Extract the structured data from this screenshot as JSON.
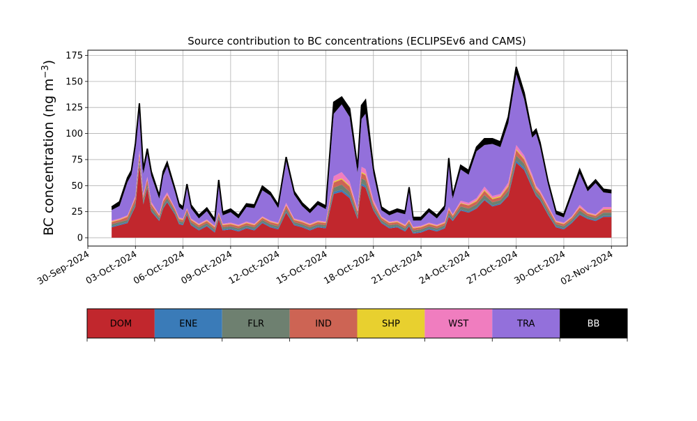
{
  "chart_data": {
    "type": "area",
    "title": "Source contribution to BC concentrations (ECLIPSEv6 and CAMS)",
    "xlabel": "",
    "ylabel": "BC concentration (ng m",
    "ylabel_superscript": "−3",
    "ylabel_close": ")",
    "ylim": [
      -8,
      180
    ],
    "x_axis": "date",
    "xlim": [
      "2024-09-30",
      "2024-11-03"
    ],
    "grid": true,
    "stacking": "stacked",
    "yticks": [
      {
        "value": 0,
        "label": "0"
      },
      {
        "value": 25,
        "label": "25"
      },
      {
        "value": 50,
        "label": "50"
      },
      {
        "value": 75,
        "label": "75"
      },
      {
        "value": 100,
        "label": "100"
      },
      {
        "value": 125,
        "label": "125"
      },
      {
        "value": 150,
        "label": "150"
      },
      {
        "value": 175,
        "label": "175"
      }
    ],
    "xticks": [
      {
        "date": "2024-09-30",
        "label": "30-Sep-2024"
      },
      {
        "date": "2024-10-03",
        "label": "03-Oct-2024"
      },
      {
        "date": "2024-10-06",
        "label": "06-Oct-2024"
      },
      {
        "date": "2024-10-09",
        "label": "09-Oct-2024"
      },
      {
        "date": "2024-10-12",
        "label": "12-Oct-2024"
      },
      {
        "date": "2024-10-15",
        "label": "15-Oct-2024"
      },
      {
        "date": "2024-10-18",
        "label": "18-Oct-2024"
      },
      {
        "date": "2024-10-21",
        "label": "21-Oct-2024"
      },
      {
        "date": "2024-10-24",
        "label": "24-Oct-2024"
      },
      {
        "date": "2024-10-27",
        "label": "27-Oct-2024"
      },
      {
        "date": "2024-10-30",
        "label": "30-Oct-2024"
      },
      {
        "date": "2024-11-02",
        "label": "02-Nov-2024"
      }
    ],
    "x": [
      "2024-10-01 12:00",
      "2024-10-02 00:00",
      "2024-10-02 12:00",
      "2024-10-02 18:00",
      "2024-10-03 00:00",
      "2024-10-03 06:00",
      "2024-10-03 12:00",
      "2024-10-03 18:00",
      "2024-10-04 00:00",
      "2024-10-04 12:00",
      "2024-10-04 18:00",
      "2024-10-05 00:00",
      "2024-10-05 12:00",
      "2024-10-05 18:00",
      "2024-10-06 00:00",
      "2024-10-06 06:00",
      "2024-10-06 12:00",
      "2024-10-07 00:00",
      "2024-10-07 12:00",
      "2024-10-08 00:00",
      "2024-10-08 06:00",
      "2024-10-08 12:00",
      "2024-10-09 00:00",
      "2024-10-09 12:00",
      "2024-10-10 00:00",
      "2024-10-10 12:00",
      "2024-10-11 00:00",
      "2024-10-11 12:00",
      "2024-10-12 00:00",
      "2024-10-12 12:00",
      "2024-10-13 00:00",
      "2024-10-13 12:00",
      "2024-10-14 00:00",
      "2024-10-14 12:00",
      "2024-10-15 00:00",
      "2024-10-15 12:00",
      "2024-10-16 00:00",
      "2024-10-16 12:00",
      "2024-10-17 00:00",
      "2024-10-17 06:00",
      "2024-10-17 12:00",
      "2024-10-18 00:00",
      "2024-10-18 12:00",
      "2024-10-19 00:00",
      "2024-10-19 12:00",
      "2024-10-20 00:00",
      "2024-10-20 06:00",
      "2024-10-20 12:00",
      "2024-10-21 00:00",
      "2024-10-21 12:00",
      "2024-10-22 00:00",
      "2024-10-22 12:00",
      "2024-10-22 18:00",
      "2024-10-23 00:00",
      "2024-10-23 12:00",
      "2024-10-24 00:00",
      "2024-10-24 12:00",
      "2024-10-25 00:00",
      "2024-10-25 12:00",
      "2024-10-26 00:00",
      "2024-10-26 12:00",
      "2024-10-27 00:00",
      "2024-10-27 12:00",
      "2024-10-28 00:00",
      "2024-10-28 06:00",
      "2024-10-28 12:00",
      "2024-10-29 00:00",
      "2024-10-29 12:00",
      "2024-10-30 00:00",
      "2024-10-30 12:00",
      "2024-10-31 00:00",
      "2024-10-31 12:00",
      "2024-11-01 00:00",
      "2024-11-01 12:00",
      "2024-11-02 00:00"
    ],
    "series": [
      {
        "name": "DOM",
        "color": "#c1272d",
        "values": [
          10,
          12,
          14,
          22,
          30,
          70,
          32,
          48,
          25,
          16,
          28,
          34,
          22,
          13,
          12,
          22,
          12,
          7,
          11,
          5,
          18,
          7,
          8,
          6,
          9,
          7,
          14,
          10,
          8,
          24,
          12,
          10,
          7,
          10,
          9,
          42,
          44,
          38,
          18,
          50,
          48,
          26,
          14,
          9,
          10,
          6,
          11,
          4,
          5,
          8,
          6,
          9,
          20,
          16,
          26,
          24,
          28,
          36,
          30,
          32,
          40,
          72,
          65,
          48,
          40,
          36,
          22,
          10,
          8,
          14,
          22,
          18,
          16,
          20,
          20
        ]
      },
      {
        "name": "ENE",
        "color": "#3a7bb8",
        "values": [
          1,
          1,
          1,
          1,
          1,
          2,
          1,
          1,
          1,
          1,
          1,
          1,
          1,
          1,
          1,
          1,
          1,
          1,
          1,
          1,
          1,
          1,
          1,
          1,
          1,
          1,
          1,
          1,
          1,
          1,
          1,
          1,
          1,
          1,
          1,
          2,
          2,
          2,
          1,
          2,
          2,
          1,
          1,
          1,
          1,
          1,
          1,
          1,
          1,
          1,
          1,
          1,
          1,
          1,
          1,
          1,
          1,
          1,
          1,
          1,
          1,
          2,
          2,
          1,
          1,
          1,
          1,
          1,
          1,
          1,
          1,
          1,
          1,
          1,
          1
        ]
      },
      {
        "name": "FLR",
        "color": "#6e8070",
        "values": [
          2,
          2,
          2,
          3,
          3,
          4,
          3,
          3,
          3,
          2,
          3,
          3,
          2,
          2,
          2,
          2,
          2,
          2,
          2,
          2,
          2,
          2,
          2,
          2,
          2,
          2,
          2,
          2,
          2,
          3,
          2,
          2,
          2,
          2,
          2,
          4,
          5,
          4,
          3,
          5,
          5,
          3,
          2,
          2,
          2,
          2,
          2,
          2,
          2,
          2,
          2,
          2,
          3,
          2,
          3,
          3,
          3,
          4,
          3,
          3,
          4,
          5,
          4,
          4,
          3,
          3,
          3,
          2,
          2,
          2,
          3,
          2,
          2,
          3,
          3
        ]
      },
      {
        "name": "IND",
        "color": "#cd6454",
        "values": [
          2,
          2,
          3,
          3,
          4,
          4,
          3,
          4,
          3,
          2,
          3,
          3,
          2,
          2,
          2,
          2,
          2,
          2,
          2,
          2,
          2,
          2,
          2,
          2,
          2,
          2,
          2,
          2,
          2,
          3,
          2,
          2,
          2,
          2,
          2,
          5,
          5,
          5,
          3,
          5,
          5,
          3,
          2,
          2,
          2,
          2,
          2,
          2,
          2,
          2,
          2,
          2,
          3,
          2,
          3,
          3,
          3,
          4,
          3,
          3,
          4,
          5,
          4,
          4,
          3,
          3,
          3,
          2,
          2,
          2,
          3,
          2,
          2,
          3,
          3
        ]
      },
      {
        "name": "SHP",
        "color": "#e8d02f",
        "values": [
          0.5,
          0.5,
          0.5,
          0.5,
          0.5,
          1,
          0.5,
          0.5,
          0.5,
          0.5,
          0.5,
          0.5,
          0.5,
          0.5,
          0.5,
          0.5,
          0.5,
          0.5,
          0.5,
          0.5,
          0.5,
          0.5,
          0.5,
          0.5,
          0.5,
          0.5,
          0.5,
          0.5,
          0.5,
          0.5,
          0.5,
          0.5,
          0.5,
          0.5,
          0.5,
          1,
          1,
          1,
          0.5,
          1,
          1,
          0.5,
          0.5,
          0.5,
          0.5,
          0.5,
          0.5,
          0.5,
          0.5,
          0.5,
          0.5,
          0.5,
          0.5,
          0.5,
          0.5,
          0.5,
          1,
          1,
          1,
          1,
          1,
          1,
          1,
          1,
          1,
          0.5,
          0.5,
          0.5,
          0.5,
          0.5,
          0.5,
          0.5,
          0.5,
          0.5,
          0.5
        ]
      },
      {
        "name": "WST",
        "color": "#f07dbf",
        "values": [
          1,
          1,
          1,
          1,
          2,
          3,
          2,
          2,
          2,
          1,
          2,
          2,
          1,
          1,
          1,
          1,
          1,
          1,
          1,
          1,
          1,
          1,
          1,
          1,
          1,
          1,
          1,
          1,
          1,
          2,
          1,
          1,
          1,
          1,
          1,
          5,
          6,
          4,
          2,
          5,
          5,
          3,
          1,
          1,
          1,
          1,
          1,
          1,
          1,
          1,
          1,
          1,
          2,
          1,
          2,
          2,
          2,
          3,
          2,
          2,
          3,
          4,
          3,
          3,
          2,
          2,
          2,
          1,
          1,
          1,
          2,
          1,
          1,
          2,
          2
        ]
      },
      {
        "name": "TRA",
        "color": "#9370db",
        "values": [
          10,
          12,
          32,
          30,
          45,
          40,
          20,
          22,
          25,
          15,
          22,
          25,
          15,
          10,
          8,
          20,
          10,
          5,
          8,
          3,
          28,
          8,
          10,
          6,
          14,
          15,
          25,
          24,
          14,
          40,
          23,
          14,
          10,
          15,
          12,
          60,
          65,
          62,
          35,
          46,
          53,
          25,
          6,
          6,
          8,
          10,
          28,
          6,
          5,
          10,
          6,
          12,
          43,
          15,
          30,
          27,
          45,
          40,
          50,
          45,
          57,
          68,
          54,
          35,
          50,
          42,
          20,
          6,
          5,
          20,
          30,
          20,
          30,
          14,
          13
        ]
      },
      {
        "name": "BB",
        "color": "#000000",
        "values": [
          3,
          4,
          4,
          4,
          5,
          5,
          4,
          5,
          4,
          3,
          4,
          4,
          3,
          3,
          3,
          3,
          3,
          3,
          3,
          3,
          3,
          3,
          3,
          3,
          3,
          3,
          4,
          3,
          3,
          4,
          3,
          3,
          3,
          3,
          3,
          11,
          7,
          8,
          5,
          13,
          13,
          5,
          3,
          3,
          3,
          3,
          3,
          3,
          3,
          3,
          3,
          3,
          4,
          3,
          4,
          4,
          4,
          6,
          5,
          5,
          6,
          7,
          6,
          4,
          4,
          4,
          3,
          3,
          3,
          3,
          4,
          3,
          3,
          3,
          3
        ]
      }
    ],
    "legend": {
      "placement": "bottom",
      "entries": [
        "DOM",
        "ENE",
        "FLR",
        "IND",
        "SHP",
        "WST",
        "TRA",
        "BB"
      ],
      "text_colors": [
        "#000000",
        "#000000",
        "#000000",
        "#000000",
        "#000000",
        "#000000",
        "#000000",
        "#ffffff"
      ]
    }
  }
}
